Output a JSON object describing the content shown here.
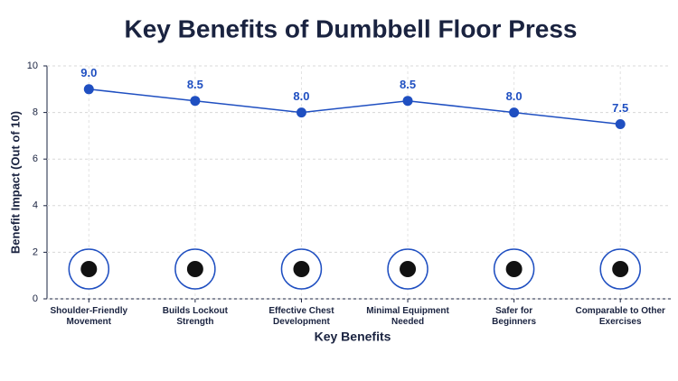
{
  "chart_data": {
    "type": "line",
    "title": "Key Benefits of Dumbbell Floor Press",
    "x_label": "Key Benefits",
    "y_label": "Benefit Impact (Out of 10)",
    "categories": [
      "Shoulder-Friendly\nMovement",
      "Builds Lockout\nStrength",
      "Effective Chest\nDevelopment",
      "Minimal Equipment\nNeeded",
      "Safer for\nBeginners",
      "Comparable to Other\nExercises"
    ],
    "series": [
      {
        "name": "Benefit Impact",
        "color": "#1f4fc1",
        "values": [
          9,
          8.5,
          8,
          8.5,
          8,
          7.5
        ],
        "value_labels": [
          "9.0",
          "8.5",
          "8.0",
          "8.5",
          "8.0",
          "7.5"
        ]
      }
    ],
    "ylim": [
      0,
      10
    ],
    "yticks": [
      0,
      2,
      4,
      6,
      8,
      10
    ],
    "grid": true
  }
}
